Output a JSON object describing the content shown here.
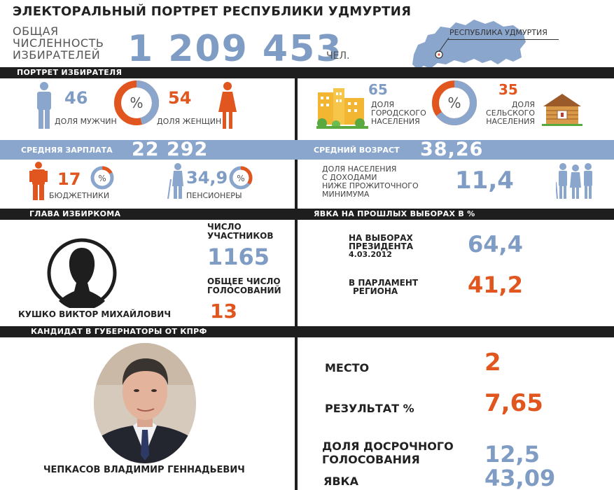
{
  "header": {
    "title": "ЭЛЕКТОРАЛЬНЫЙ ПОРТРЕТ РЕСПУБЛИКИ УДМУРТИЯ",
    "population_label_lines": [
      "ОБЩАЯ",
      "ЧИСЛЕННОСТЬ",
      "ИЗБИРАТЕЛЕЙ"
    ],
    "population_value": "1 209 453",
    "population_unit": "ЧЕЛ.",
    "map_label": "РЕСПУБЛИКА УДМУРТИЯ"
  },
  "portrait": {
    "heading": "ПОРТРЕТ ИЗБИРАТЕЛЯ",
    "men_value": "46",
    "men_label": "ДОЛЯ МУЖЧИН",
    "women_value": "54",
    "women_label": "ДОЛЯ ЖЕНЩИН",
    "urban_value": "65",
    "urban_label_lines": [
      "ДОЛЯ",
      "ГОРОДСКОГО",
      "НАСЕЛЕНИЯ"
    ],
    "rural_value": "35",
    "rural_label_lines": [
      "ДОЛЯ",
      "СЕЛЬСКОГО",
      "НАСЕЛЕНИЯ"
    ],
    "percent_symbol": "%",
    "men_share": 46,
    "urban_share": 65
  },
  "band": {
    "salary_label": "СРЕДНЯЯ ЗАРПЛАТА",
    "salary_value": "22 292",
    "age_label": "СРЕДНИЙ ВОЗРАСТ",
    "age_value": "38,26"
  },
  "social": {
    "public_value": "17",
    "public_label": "БЮДЖЕТНИКИ",
    "pension_value": "34,9",
    "pension_label": "ПЕНСИОНЕРЫ",
    "poverty_label_lines": [
      "ДОЛЯ НАСЕЛЕНИЯ",
      "С ДОХОДАМИ",
      "НИЖЕ ПРОЖИТОЧНОГО",
      "МИНИМУМА"
    ],
    "poverty_value": "11,4",
    "percent_symbol": "%",
    "public_share": 17,
    "pension_share": 34.9
  },
  "commission": {
    "heading": "ГЛАВА ИЗБИРКОМА",
    "head_name": "КУШКО ВИКТОР МИХАЙЛОВИЧ",
    "participants_label_lines": [
      "ЧИСЛО",
      "УЧАСТНИКОВ"
    ],
    "participants_value": "1165",
    "votes_label_lines": [
      "ОБЩЕЕ ЧИСЛО",
      "ГОЛОСОВАНИЙ"
    ],
    "votes_value": "13"
  },
  "turnout": {
    "heading": "ЯВКА НА ПРОШЛЫХ ВЫБОРАХ В %",
    "president_label_lines": [
      "НА ВЫБОРАХ",
      "ПРЕЗИДЕНТА",
      "4.03.2012"
    ],
    "president_value": "64,4",
    "parliament_label_lines": [
      "В ПАРЛАМЕНТ",
      "РЕГИОНА"
    ],
    "parliament_value": "41,2"
  },
  "candidate": {
    "heading": "КАНДИДАТ В ГУБЕРНАТОРЫ ОТ КПРФ",
    "name": "ЧЕПКАСОВ ВЛАДИМИР ГЕННАДЬЕВИЧ",
    "place_label": "МЕСТО",
    "place_value": "2",
    "result_label": "РЕЗУЛЬТАТ %",
    "result_value": "7,65",
    "early_label_lines": [
      "ДОЛЯ ДОСРОЧНОГО",
      "ГОЛОСОВАНИЯ"
    ],
    "early_value": "12,5",
    "turnout_label": "ЯВКА",
    "turnout_value": "43,09"
  },
  "colors": {
    "blue": "#7f9cc4",
    "orange": "#e0561e",
    "black": "#1e1e1e",
    "band": "#8aa6cc"
  },
  "icons": [
    "russia-map-icon",
    "man-icon",
    "woman-icon",
    "city-buildings-icon",
    "house-icon",
    "worker-icon",
    "pensioner-icon",
    "poor-family-icon",
    "head-silhouette-icon",
    "candidate-photo"
  ]
}
